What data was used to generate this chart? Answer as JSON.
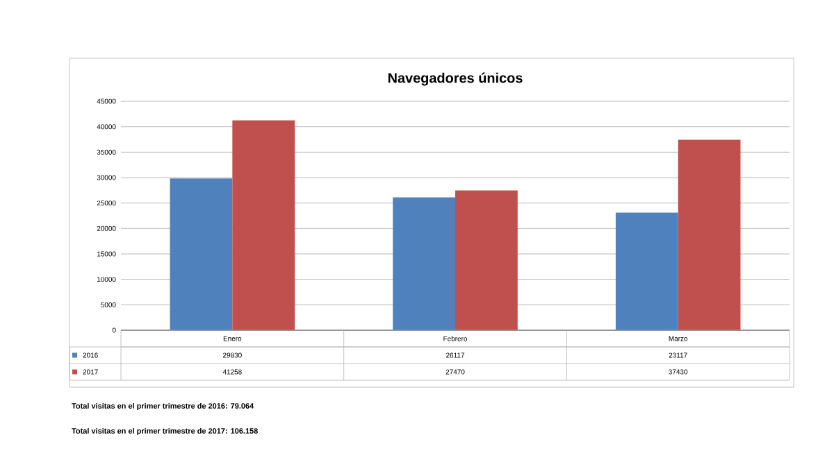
{
  "chart_data": {
    "type": "bar",
    "title": "Navegadores únicos",
    "categories": [
      "Enero",
      "Febrero",
      "Marzo"
    ],
    "series": [
      {
        "name": "2016",
        "color": "#4f81bd",
        "values": [
          29830,
          26117,
          23117
        ]
      },
      {
        "name": "2017",
        "color": "#c0504d",
        "values": [
          41258,
          27470,
          37430
        ]
      }
    ],
    "ylim": [
      0,
      45000
    ],
    "yticks": [
      0,
      5000,
      10000,
      15000,
      20000,
      25000,
      30000,
      35000,
      40000,
      45000
    ],
    "grid": "y",
    "legend": "bottom",
    "data_labels": true,
    "annotations": [
      "Total visitas en el primer trimestre de 2016: 79.064",
      "Total visitas en el primer trimestre de 2017: 106.158"
    ]
  }
}
